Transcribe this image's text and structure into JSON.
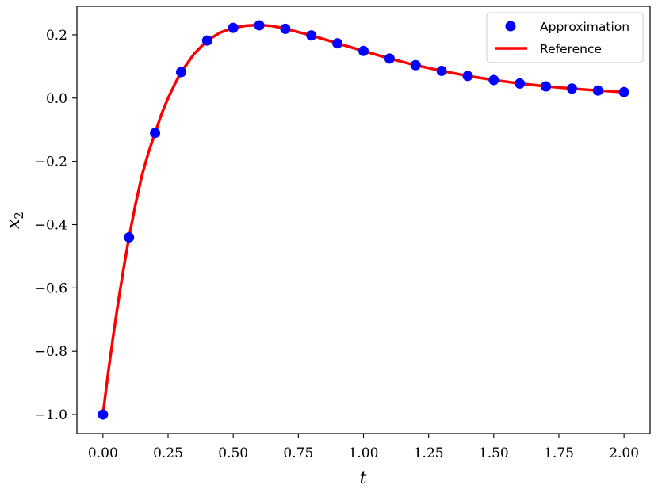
{
  "chart_data": {
    "type": "line",
    "xlabel": "t",
    "ylabel_base": "x",
    "ylabel_subscript": "2",
    "xlim": [
      -0.1,
      2.1
    ],
    "ylim": [
      -1.06,
      0.29
    ],
    "xticks": [
      0.0,
      0.25,
      0.5,
      0.75,
      1.0,
      1.25,
      1.5,
      1.75,
      2.0
    ],
    "xtick_labels": [
      "0.00",
      "0.25",
      "0.50",
      "0.75",
      "1.00",
      "1.25",
      "1.50",
      "1.75",
      "2.00"
    ],
    "yticks": [
      -1.0,
      -0.8,
      -0.6,
      -0.4,
      -0.2,
      0.0,
      0.2
    ],
    "ytick_labels": [
      "−1.0",
      "−0.8",
      "−0.6",
      "−0.4",
      "−0.2",
      "0.0",
      "0.2"
    ],
    "grid": false,
    "legend_position": "top-right",
    "series": [
      {
        "name": "Approximation",
        "style": "markers",
        "color": "#0000ff",
        "x": [
          0.0,
          0.1,
          0.2,
          0.3,
          0.4,
          0.5,
          0.6,
          0.7,
          0.8,
          0.9,
          1.0,
          1.1,
          1.2,
          1.3,
          1.4,
          1.5,
          1.6,
          1.7,
          1.8,
          1.9,
          2.0
        ],
        "y": [
          -1.0,
          -0.44,
          -0.11,
          0.082,
          0.182,
          0.222,
          0.23,
          0.219,
          0.198,
          0.173,
          0.149,
          0.125,
          0.104,
          0.086,
          0.07,
          0.057,
          0.046,
          0.037,
          0.03,
          0.024,
          0.019
        ]
      },
      {
        "name": "Reference",
        "style": "line",
        "color": "#ff0000",
        "x": [
          0.0,
          0.02,
          0.04,
          0.06,
          0.08,
          0.1,
          0.125,
          0.15,
          0.175,
          0.2,
          0.225,
          0.25,
          0.275,
          0.3,
          0.35,
          0.4,
          0.45,
          0.5,
          0.55,
          0.6,
          0.65,
          0.7,
          0.8,
          0.9,
          1.0,
          1.1,
          1.2,
          1.3,
          1.4,
          1.5,
          1.6,
          1.7,
          1.8,
          1.9,
          2.0
        ],
        "y": [
          -1.0,
          -0.868,
          -0.748,
          -0.637,
          -0.535,
          -0.44,
          -0.335,
          -0.243,
          -0.171,
          -0.11,
          -0.05,
          0.0,
          0.043,
          0.082,
          0.14,
          0.182,
          0.207,
          0.222,
          0.229,
          0.231,
          0.228,
          0.219,
          0.198,
          0.173,
          0.149,
          0.125,
          0.104,
          0.086,
          0.07,
          0.057,
          0.046,
          0.037,
          0.03,
          0.024,
          0.019
        ]
      }
    ]
  }
}
